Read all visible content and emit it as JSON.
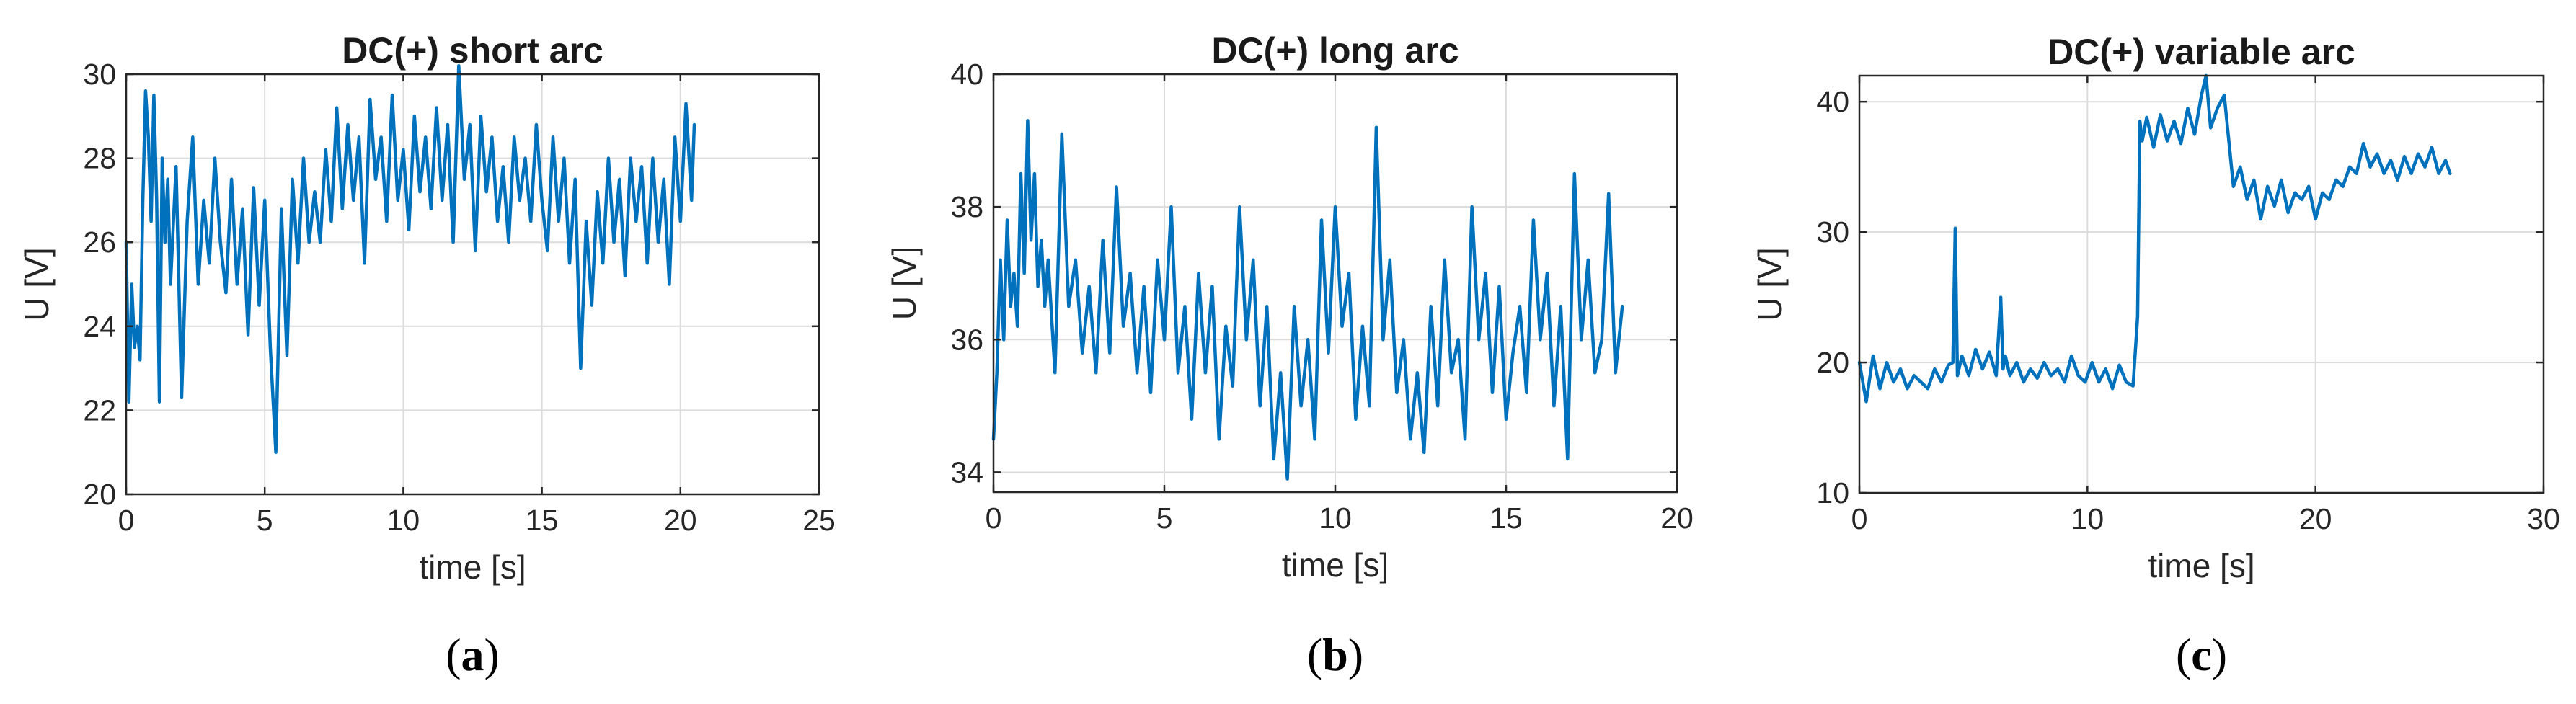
{
  "chart_data": [
    {
      "type": "line",
      "panel_label": "a",
      "title": "DC(+) short arc",
      "xlabel": "time [s]",
      "ylabel": "U [V]",
      "xlim": [
        0,
        25
      ],
      "ylim": [
        20,
        30
      ],
      "xticks": [
        0,
        5,
        10,
        15,
        20,
        25
      ],
      "yticks": [
        20,
        22,
        24,
        26,
        28,
        30
      ],
      "grid": true,
      "color": "#0072BD",
      "series": [
        {
          "x": [
            0,
            0.1,
            0.2,
            0.3,
            0.4,
            0.5,
            0.6,
            0.7,
            0.8,
            0.9,
            1.0,
            1.1,
            1.2,
            1.3,
            1.4,
            1.5,
            1.6,
            1.8,
            2.0,
            2.2,
            2.4,
            2.6,
            2.8,
            3.0,
            3.2,
            3.4,
            3.6,
            3.8,
            4.0,
            4.2,
            4.4,
            4.6,
            4.8,
            5.0,
            5.2,
            5.4,
            5.6,
            5.8,
            6.0,
            6.2,
            6.4,
            6.6,
            6.8,
            7.0,
            7.2,
            7.4,
            7.6,
            7.8,
            8.0,
            8.2,
            8.4,
            8.6,
            8.8,
            9.0,
            9.2,
            9.4,
            9.6,
            9.8,
            10.0,
            10.2,
            10.4,
            10.6,
            10.8,
            11.0,
            11.2,
            11.4,
            11.6,
            11.8,
            12.0,
            12.2,
            12.4,
            12.6,
            12.8,
            13.0,
            13.2,
            13.4,
            13.6,
            13.8,
            14.0,
            14.2,
            14.4,
            14.6,
            14.8,
            15.0,
            15.2,
            15.4,
            15.6,
            15.8,
            16.0,
            16.2,
            16.4,
            16.6,
            16.8,
            17.0,
            17.2,
            17.4,
            17.6,
            17.8,
            18.0,
            18.2,
            18.4,
            18.6,
            18.8,
            19.0,
            19.2,
            19.4,
            19.6,
            19.8,
            20.0,
            20.2,
            20.4,
            20.5
          ],
          "y": [
            26.0,
            22.2,
            25.0,
            23.5,
            24.0,
            23.2,
            27.0,
            29.6,
            28.5,
            26.5,
            29.5,
            27.0,
            22.2,
            28.0,
            26.0,
            27.5,
            25.0,
            27.8,
            22.3,
            26.5,
            28.5,
            25.0,
            27.0,
            25.5,
            28.0,
            26.0,
            24.8,
            27.5,
            25.0,
            26.8,
            23.8,
            27.3,
            24.5,
            27.0,
            23.5,
            21.0,
            26.8,
            23.3,
            27.5,
            25.5,
            28.0,
            26.0,
            27.2,
            26.0,
            28.2,
            26.5,
            29.2,
            26.8,
            28.8,
            27.0,
            28.5,
            25.5,
            29.4,
            27.5,
            28.5,
            26.5,
            29.5,
            27.0,
            28.2,
            26.3,
            29.0,
            27.2,
            28.5,
            26.8,
            29.2,
            27.0,
            28.8,
            26.0,
            30.2,
            27.5,
            28.8,
            25.8,
            29.0,
            27.2,
            28.5,
            26.5,
            27.8,
            26.0,
            28.5,
            27.0,
            28.0,
            26.5,
            28.8,
            27.0,
            25.8,
            28.5,
            26.5,
            28.0,
            25.5,
            27.5,
            23.0,
            26.5,
            24.5,
            27.2,
            25.5,
            28.0,
            26.0,
            27.5,
            25.2,
            28.0,
            26.5,
            27.8,
            25.5,
            28.0,
            26.0,
            27.5,
            25.0,
            28.5,
            26.5,
            29.3,
            27.0,
            28.8
          ]
        }
      ]
    },
    {
      "type": "line",
      "panel_label": "b",
      "title": "DC(+) long arc",
      "xlabel": "time [s]",
      "ylabel": "U [V]",
      "xlim": [
        0,
        20
      ],
      "ylim": [
        33.7,
        40
      ],
      "xticks": [
        0,
        5,
        10,
        15,
        20
      ],
      "yticks": [
        34,
        36,
        38,
        40
      ],
      "grid": true,
      "color": "#0072BD",
      "series": [
        {
          "x": [
            0,
            0.1,
            0.2,
            0.3,
            0.4,
            0.5,
            0.6,
            0.7,
            0.8,
            0.9,
            1.0,
            1.1,
            1.2,
            1.3,
            1.4,
            1.5,
            1.6,
            1.8,
            2.0,
            2.2,
            2.4,
            2.6,
            2.8,
            3.0,
            3.2,
            3.4,
            3.6,
            3.8,
            4.0,
            4.2,
            4.4,
            4.6,
            4.8,
            5.0,
            5.2,
            5.4,
            5.6,
            5.8,
            6.0,
            6.2,
            6.4,
            6.6,
            6.8,
            7.0,
            7.2,
            7.4,
            7.6,
            7.8,
            8.0,
            8.2,
            8.4,
            8.6,
            8.8,
            9.0,
            9.2,
            9.4,
            9.6,
            9.8,
            10.0,
            10.2,
            10.4,
            10.6,
            10.8,
            11.0,
            11.2,
            11.4,
            11.6,
            11.8,
            12.0,
            12.2,
            12.4,
            12.6,
            12.8,
            13.0,
            13.2,
            13.4,
            13.6,
            13.8,
            14.0,
            14.2,
            14.4,
            14.6,
            14.8,
            15.0,
            15.2,
            15.4,
            15.6,
            15.8,
            16.0,
            16.2,
            16.4,
            16.6,
            16.8,
            17.0,
            17.2,
            17.4,
            17.6,
            17.8,
            18.0,
            18.2,
            18.4
          ],
          "y": [
            34.5,
            35.5,
            37.2,
            36.0,
            37.8,
            36.5,
            37.0,
            36.2,
            38.5,
            37.0,
            39.3,
            37.5,
            38.5,
            36.8,
            37.5,
            36.5,
            37.2,
            35.5,
            39.1,
            36.5,
            37.2,
            35.8,
            36.8,
            35.5,
            37.5,
            35.8,
            38.3,
            36.2,
            37.0,
            35.5,
            36.8,
            35.2,
            37.2,
            36.0,
            38.0,
            35.5,
            36.5,
            34.8,
            37.0,
            35.5,
            36.8,
            34.5,
            36.2,
            35.3,
            38.0,
            36.0,
            37.2,
            35.0,
            36.5,
            34.2,
            35.5,
            33.9,
            36.5,
            35.0,
            36.0,
            34.5,
            37.8,
            35.8,
            38.0,
            36.2,
            37.0,
            34.8,
            36.2,
            35.0,
            39.2,
            36.0,
            37.2,
            35.2,
            36.0,
            34.5,
            35.5,
            34.3,
            36.5,
            35.0,
            37.2,
            35.5,
            36.0,
            34.5,
            38.0,
            36.0,
            37.0,
            35.2,
            36.8,
            34.8,
            35.8,
            36.5,
            35.2,
            37.8,
            36.0,
            37.0,
            35.0,
            36.5,
            34.2,
            38.5,
            36.0,
            37.2,
            35.5,
            36.0,
            38.2,
            35.5,
            36.5
          ]
        }
      ]
    },
    {
      "type": "line",
      "panel_label": "c",
      "title": "DC(+) variable arc",
      "xlabel": "time [s]",
      "ylabel": "U [V]",
      "xlim": [
        0,
        30
      ],
      "ylim": [
        10,
        42
      ],
      "xticks": [
        0,
        10,
        20,
        30
      ],
      "yticks": [
        10,
        20,
        30,
        40
      ],
      "grid": true,
      "color": "#0072BD",
      "series": [
        {
          "x": [
            0,
            0.3,
            0.6,
            0.9,
            1.2,
            1.5,
            1.8,
            2.1,
            2.4,
            2.7,
            3.0,
            3.3,
            3.6,
            3.9,
            4.1,
            4.2,
            4.3,
            4.5,
            4.8,
            5.1,
            5.4,
            5.7,
            6.0,
            6.2,
            6.3,
            6.4,
            6.6,
            6.9,
            7.2,
            7.5,
            7.8,
            8.1,
            8.4,
            8.7,
            9.0,
            9.3,
            9.6,
            9.9,
            10.2,
            10.5,
            10.8,
            11.1,
            11.4,
            11.7,
            12.0,
            12.2,
            12.3,
            12.4,
            12.6,
            12.9,
            13.2,
            13.5,
            13.8,
            14.1,
            14.4,
            14.7,
            15.0,
            15.2,
            15.4,
            15.7,
            16.0,
            16.2,
            16.4,
            16.7,
            17.0,
            17.3,
            17.6,
            17.9,
            18.2,
            18.5,
            18.8,
            19.1,
            19.4,
            19.7,
            20.0,
            20.3,
            20.6,
            20.9,
            21.2,
            21.5,
            21.8,
            22.1,
            22.4,
            22.7,
            23.0,
            23.3,
            23.6,
            23.9,
            24.2,
            24.5,
            24.8,
            25.1,
            25.4,
            25.7,
            25.9
          ],
          "y": [
            20.0,
            17.0,
            20.5,
            18.0,
            20.0,
            18.5,
            19.5,
            18.0,
            19.0,
            18.5,
            18.0,
            19.5,
            18.5,
            19.8,
            20.0,
            30.3,
            19.0,
            20.5,
            19.0,
            21.0,
            19.5,
            20.8,
            19.0,
            25.0,
            19.5,
            20.5,
            19.0,
            20.0,
            18.5,
            19.5,
            18.8,
            20.0,
            19.0,
            19.5,
            18.5,
            20.5,
            19.0,
            18.5,
            20.0,
            18.5,
            19.5,
            18.0,
            19.8,
            18.5,
            18.2,
            23.5,
            38.5,
            37.0,
            38.8,
            36.5,
            39.0,
            37.0,
            38.5,
            36.8,
            39.5,
            37.5,
            40.5,
            42.0,
            38.0,
            39.5,
            40.5,
            37.0,
            33.5,
            35.0,
            32.5,
            34.0,
            31.0,
            33.5,
            32.0,
            34.0,
            31.5,
            33.0,
            32.5,
            33.5,
            31.0,
            33.0,
            32.5,
            34.0,
            33.5,
            35.0,
            34.5,
            36.8,
            35.0,
            36.0,
            34.5,
            35.5,
            34.0,
            35.8,
            34.5,
            36.0,
            35.0,
            36.5,
            34.5,
            35.5,
            34.5
          ]
        }
      ]
    }
  ]
}
